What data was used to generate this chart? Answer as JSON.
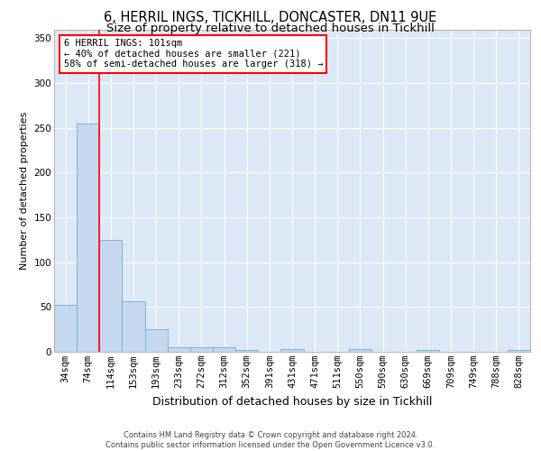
{
  "title1": "6, HERRIL INGS, TICKHILL, DONCASTER, DN11 9UE",
  "title2": "Size of property relative to detached houses in Tickhill",
  "xlabel": "Distribution of detached houses by size in Tickhill",
  "ylabel": "Number of detached properties",
  "bar_color": "#c5d8f0",
  "bar_edge_color": "#6baed6",
  "background_color": "#dce8f5",
  "grid_color": "#ffffff",
  "categories": [
    "34sqm",
    "74sqm",
    "114sqm",
    "153sqm",
    "193sqm",
    "233sqm",
    "272sqm",
    "312sqm",
    "352sqm",
    "391sqm",
    "431sqm",
    "471sqm",
    "511sqm",
    "550sqm",
    "590sqm",
    "630sqm",
    "669sqm",
    "709sqm",
    "749sqm",
    "788sqm",
    "828sqm"
  ],
  "values": [
    52,
    255,
    125,
    56,
    25,
    5,
    5,
    5,
    2,
    0,
    3,
    0,
    0,
    3,
    0,
    0,
    2,
    0,
    0,
    0,
    2
  ],
  "red_line_index": 2,
  "annotation_text": "6 HERRIL INGS: 101sqm\n← 40% of detached houses are smaller (221)\n58% of semi-detached houses are larger (318) →",
  "ylim": [
    0,
    360
  ],
  "yticks": [
    0,
    50,
    100,
    150,
    200,
    250,
    300,
    350
  ],
  "footnote": "Contains HM Land Registry data © Crown copyright and database right 2024.\nContains public sector information licensed under the Open Government Licence v3.0.",
  "title1_fontsize": 10.5,
  "title2_fontsize": 9.5,
  "xlabel_fontsize": 9,
  "ylabel_fontsize": 8,
  "tick_fontsize": 7.5,
  "footnote_fontsize": 6
}
